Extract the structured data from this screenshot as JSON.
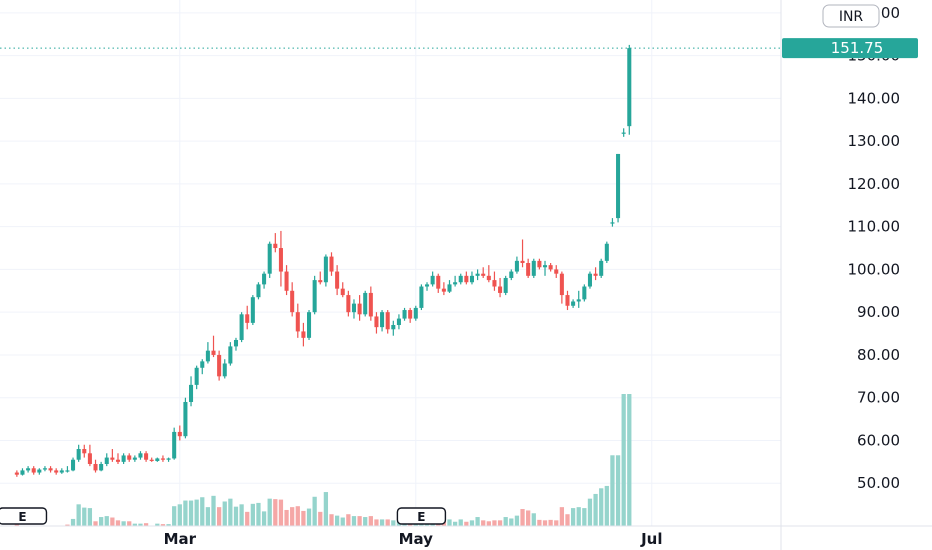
{
  "colors": {
    "up": "#26a69a",
    "down": "#ef5350",
    "vol_up": "#95d4cc",
    "vol_down": "#f5a7a6",
    "grid": "#f0f3fa",
    "price_tag": "#26a69a"
  },
  "chart_data": {
    "type": "candlestick",
    "currency": "INR",
    "last_price": "151.75",
    "y_ticks": [
      "50.00",
      "60.00",
      "70.00",
      "80.00",
      "90.00",
      "100.00",
      "110.00",
      "120.00",
      "130.00",
      "140.00",
      "150.00",
      "160.00"
    ],
    "ylim": [
      40,
      163
    ],
    "x_ticks": [
      {
        "label": "Mar",
        "index": 29
      },
      {
        "label": "May",
        "index": 71
      },
      {
        "label": "Jul",
        "index": 113
      }
    ],
    "x_span": [
      -3,
      136
    ],
    "earnings_markers": [
      {
        "label": "E",
        "index": 1
      },
      {
        "label": "E",
        "index": 72
      }
    ],
    "candles": [
      [
        52.5,
        53.0,
        51.5,
        52.0
      ],
      [
        52.0,
        53.5,
        51.8,
        53.0
      ],
      [
        53.0,
        54.0,
        52.5,
        53.5
      ],
      [
        53.5,
        54.0,
        52.0,
        52.5
      ],
      [
        52.5,
        53.5,
        52.0,
        53.2
      ],
      [
        53.2,
        54.0,
        52.8,
        53.5
      ],
      [
        53.5,
        54.0,
        52.5,
        53.0
      ],
      [
        53.0,
        53.5,
        52.0,
        52.5
      ],
      [
        52.5,
        53.5,
        52.2,
        53.0
      ],
      [
        53.0,
        54.0,
        52.5,
        53.0
      ],
      [
        53.0,
        56.0,
        52.8,
        55.5
      ],
      [
        55.5,
        59.0,
        55.0,
        58.0
      ],
      [
        58.0,
        59.0,
        56.0,
        57.0
      ],
      [
        57.0,
        59.0,
        54.0,
        54.5
      ],
      [
        54.5,
        55.5,
        52.5,
        53.0
      ],
      [
        53.0,
        55.0,
        52.8,
        54.5
      ],
      [
        54.5,
        57.0,
        54.0,
        56.0
      ],
      [
        56.0,
        58.0,
        55.0,
        55.5
      ],
      [
        55.5,
        57.0,
        54.5,
        55.0
      ],
      [
        55.0,
        57.0,
        54.5,
        56.5
      ],
      [
        56.5,
        57.0,
        55.0,
        55.5
      ],
      [
        55.5,
        56.5,
        55.0,
        56.0
      ],
      [
        56.0,
        57.5,
        55.5,
        57.0
      ],
      [
        57.0,
        57.5,
        55.0,
        55.5
      ],
      [
        55.5,
        56.0,
        55.0,
        55.2
      ],
      [
        55.2,
        56.0,
        55.0,
        55.8
      ],
      [
        55.8,
        56.5,
        55.0,
        55.5
      ],
      [
        55.5,
        56.0,
        55.0,
        55.8
      ],
      [
        55.8,
        63.0,
        55.5,
        62.0
      ],
      [
        62.0,
        63.5,
        60.0,
        61.0
      ],
      [
        61.0,
        70.0,
        60.5,
        69.0
      ],
      [
        69.0,
        75.0,
        68.0,
        73.0
      ],
      [
        73.0,
        77.5,
        72.0,
        77.0
      ],
      [
        77.0,
        79.0,
        75.5,
        78.5
      ],
      [
        78.5,
        83.0,
        78.0,
        81.0
      ],
      [
        81.0,
        84.5,
        79.5,
        80.0
      ],
      [
        80.0,
        81.0,
        74.0,
        75.0
      ],
      [
        75.0,
        79.0,
        74.5,
        78.0
      ],
      [
        78.0,
        83.0,
        77.5,
        82.0
      ],
      [
        82.0,
        84.0,
        81.0,
        83.5
      ],
      [
        83.5,
        90.0,
        83.0,
        89.5
      ],
      [
        89.5,
        91.5,
        86.0,
        87.5
      ],
      [
        87.5,
        94.0,
        87.0,
        93.5
      ],
      [
        93.5,
        97.0,
        93.0,
        96.5
      ],
      [
        96.5,
        99.5,
        95.5,
        99.0
      ],
      [
        99.0,
        106.5,
        98.0,
        106.0
      ],
      [
        106.0,
        108.5,
        104.0,
        105.0
      ],
      [
        105.0,
        109.0,
        96.0,
        99.5
      ],
      [
        99.5,
        101.0,
        94.0,
        95.0
      ],
      [
        95.0,
        97.0,
        89.0,
        90.0
      ],
      [
        90.0,
        92.0,
        84.0,
        85.5
      ],
      [
        85.5,
        87.5,
        82.0,
        84.0
      ],
      [
        84.0,
        90.5,
        83.5,
        90.0
      ],
      [
        90.0,
        98.5,
        89.5,
        97.5
      ],
      [
        97.5,
        99.5,
        96.5,
        97.0
      ],
      [
        97.0,
        103.5,
        96.0,
        103.0
      ],
      [
        103.0,
        104.0,
        98.5,
        99.5
      ],
      [
        99.5,
        101.0,
        94.0,
        95.5
      ],
      [
        95.5,
        97.0,
        93.5,
        94.0
      ],
      [
        94.0,
        95.0,
        89.0,
        90.0
      ],
      [
        90.0,
        93.0,
        88.5,
        92.0
      ],
      [
        92.0,
        94.0,
        88.0,
        89.5
      ],
      [
        89.5,
        95.0,
        89.0,
        94.5
      ],
      [
        94.5,
        96.0,
        88.0,
        89.0
      ],
      [
        89.0,
        90.0,
        85.0,
        86.5
      ],
      [
        86.5,
        90.5,
        85.5,
        90.0
      ],
      [
        90.0,
        90.5,
        85.0,
        86.0
      ],
      [
        86.0,
        88.0,
        84.5,
        87.0
      ],
      [
        87.0,
        89.5,
        86.0,
        88.5
      ],
      [
        88.5,
        91.0,
        88.0,
        90.5
      ],
      [
        90.5,
        91.0,
        87.5,
        88.5
      ],
      [
        88.5,
        91.5,
        88.0,
        91.0
      ],
      [
        91.0,
        96.5,
        90.5,
        96.0
      ],
      [
        96.0,
        97.0,
        95.0,
        96.5
      ],
      [
        96.5,
        99.5,
        96.0,
        98.5
      ],
      [
        98.5,
        99.0,
        94.5,
        95.5
      ],
      [
        95.5,
        97.0,
        94.0,
        94.8
      ],
      [
        94.8,
        97.5,
        94.5,
        96.5
      ],
      [
        96.5,
        98.5,
        96.0,
        97.0
      ],
      [
        97.0,
        99.0,
        96.5,
        98.5
      ],
      [
        98.5,
        99.5,
        96.5,
        97.0
      ],
      [
        97.0,
        99.5,
        96.5,
        98.5
      ],
      [
        98.5,
        100.0,
        97.5,
        99.0
      ],
      [
        99.0,
        100.5,
        98.0,
        98.5
      ],
      [
        98.5,
        101.0,
        97.0,
        97.5
      ],
      [
        97.5,
        99.5,
        95.0,
        96.0
      ],
      [
        96.0,
        98.0,
        93.5,
        94.5
      ],
      [
        94.5,
        98.5,
        94.0,
        98.0
      ],
      [
        98.0,
        100.0,
        97.5,
        99.5
      ],
      [
        99.5,
        103.0,
        99.0,
        102.0
      ],
      [
        102.0,
        107.0,
        100.5,
        101.5
      ],
      [
        101.5,
        102.5,
        98.0,
        98.5
      ],
      [
        98.5,
        102.5,
        98.0,
        102.0
      ],
      [
        102.0,
        102.5,
        100.0,
        100.5
      ],
      [
        100.5,
        102.0,
        98.5,
        101.0
      ],
      [
        101.0,
        101.5,
        99.5,
        100.0
      ],
      [
        100.0,
        101.0,
        98.0,
        99.0
      ],
      [
        99.0,
        99.5,
        92.0,
        94.0
      ],
      [
        94.0,
        95.0,
        90.5,
        91.5
      ],
      [
        91.5,
        93.0,
        91.0,
        92.5
      ],
      [
        92.5,
        95.0,
        91.0,
        93.0
      ],
      [
        93.0,
        96.5,
        92.5,
        96.0
      ],
      [
        96.0,
        99.5,
        95.5,
        99.0
      ],
      [
        99.0,
        100.5,
        97.5,
        98.5
      ],
      [
        98.5,
        102.5,
        98.0,
        102.0
      ],
      [
        102.0,
        106.5,
        101.5,
        106.0
      ],
      [
        111.0,
        112.0,
        110.0,
        111.0
      ],
      [
        112.0,
        127.0,
        111.0,
        127.0
      ],
      [
        132.0,
        133.0,
        131.0,
        132.0
      ],
      [
        133.5,
        152.5,
        131.5,
        151.75
      ]
    ],
    "volumes": [
      [
        0,
        3
      ],
      [
        0,
        1
      ],
      [
        0,
        0
      ],
      [
        0,
        0
      ],
      [
        0,
        0
      ],
      [
        1,
        0
      ],
      [
        1,
        0
      ],
      [
        1,
        0
      ],
      [
        1,
        0
      ],
      [
        0,
        3
      ],
      [
        1,
        15
      ],
      [
        1,
        46
      ],
      [
        1,
        39
      ],
      [
        1,
        38
      ],
      [
        0,
        10
      ],
      [
        1,
        19
      ],
      [
        1,
        21
      ],
      [
        0,
        18
      ],
      [
        0,
        12
      ],
      [
        1,
        10
      ],
      [
        0,
        10
      ],
      [
        1,
        5
      ],
      [
        1,
        5
      ],
      [
        0,
        6
      ],
      [
        0,
        0
      ],
      [
        1,
        5
      ],
      [
        0,
        4
      ],
      [
        1,
        4
      ],
      [
        1,
        42
      ],
      [
        1,
        46
      ],
      [
        1,
        54
      ],
      [
        1,
        54
      ],
      [
        1,
        56
      ],
      [
        1,
        61
      ],
      [
        1,
        40
      ],
      [
        1,
        64
      ],
      [
        0,
        40
      ],
      [
        1,
        52
      ],
      [
        1,
        58
      ],
      [
        1,
        41
      ],
      [
        1,
        46
      ],
      [
        0,
        30
      ],
      [
        1,
        47
      ],
      [
        1,
        49
      ],
      [
        1,
        31
      ],
      [
        1,
        58
      ],
      [
        0,
        57
      ],
      [
        0,
        56
      ],
      [
        0,
        34
      ],
      [
        0,
        40
      ],
      [
        0,
        42
      ],
      [
        0,
        32
      ],
      [
        1,
        37
      ],
      [
        1,
        62
      ],
      [
        0,
        30
      ],
      [
        1,
        72
      ],
      [
        0,
        25
      ],
      [
        1,
        22
      ],
      [
        1,
        18
      ],
      [
        0,
        25
      ],
      [
        1,
        21
      ],
      [
        0,
        21
      ],
      [
        1,
        19
      ],
      [
        0,
        21
      ],
      [
        0,
        14
      ],
      [
        1,
        14
      ],
      [
        0,
        14
      ],
      [
        1,
        12
      ],
      [
        1,
        11
      ],
      [
        1,
        9
      ],
      [
        0,
        12
      ],
      [
        1,
        13
      ],
      [
        1,
        19
      ],
      [
        1,
        11
      ],
      [
        1,
        27
      ],
      [
        0,
        22
      ],
      [
        0,
        14
      ],
      [
        1,
        14
      ],
      [
        1,
        9
      ],
      [
        1,
        14
      ],
      [
        0,
        9
      ],
      [
        1,
        12
      ],
      [
        1,
        19
      ],
      [
        0,
        12
      ],
      [
        0,
        10
      ],
      [
        0,
        12
      ],
      [
        0,
        12
      ],
      [
        1,
        19
      ],
      [
        1,
        16
      ],
      [
        1,
        22
      ],
      [
        0,
        36
      ],
      [
        0,
        33
      ],
      [
        1,
        27
      ],
      [
        0,
        13
      ],
      [
        0,
        12
      ],
      [
        0,
        13
      ],
      [
        0,
        12
      ],
      [
        0,
        40
      ],
      [
        0,
        25
      ],
      [
        1,
        38
      ],
      [
        1,
        40
      ],
      [
        1,
        38
      ],
      [
        1,
        58
      ],
      [
        1,
        68
      ],
      [
        1,
        80
      ],
      [
        1,
        85
      ],
      [
        1,
        150
      ],
      [
        1,
        150
      ],
      [
        1,
        280
      ],
      [
        1,
        280
      ]
    ]
  }
}
